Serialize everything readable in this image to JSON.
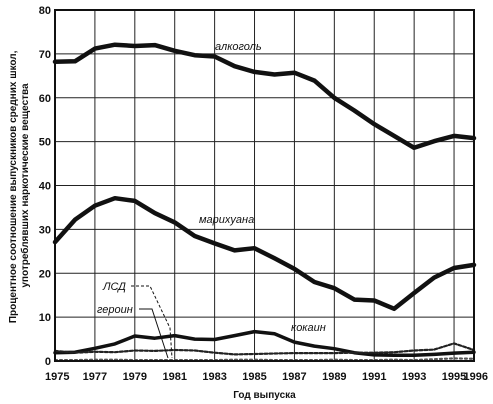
{
  "chart_data": {
    "type": "line",
    "xlabel": "Год выпуска",
    "ylabel_lines": [
      "Процентное соотношение выпускников средних школ,",
      "употреблявших наркотические вещества"
    ],
    "xlim": [
      1975,
      1996
    ],
    "ylim": [
      0,
      80
    ],
    "x_ticks": [
      1975,
      1977,
      1979,
      1981,
      1983,
      1985,
      1987,
      1989,
      1991,
      1993,
      1995,
      1996
    ],
    "x_tick_labels": [
      "1975",
      "1977",
      "1979",
      "1981",
      "1983",
      "1985",
      "1987",
      "1989",
      "1991",
      "1993",
      "1995",
      "1996"
    ],
    "y_ticks": [
      0,
      10,
      20,
      30,
      40,
      50,
      60,
      70,
      80
    ],
    "y_tick_labels": [
      "0",
      "10",
      "20",
      "30",
      "40",
      "50",
      "60",
      "70",
      "80"
    ],
    "grid": true,
    "x": [
      1975,
      1976,
      1977,
      1978,
      1979,
      1980,
      1981,
      1982,
      1983,
      1984,
      1985,
      1986,
      1987,
      1988,
      1989,
      1990,
      1991,
      1992,
      1993,
      1994,
      1995,
      1996
    ],
    "series": [
      {
        "name": "алкоголь",
        "values": [
          68.2,
          68.3,
          71.2,
          72.1,
          71.8,
          72.0,
          70.7,
          69.7,
          69.4,
          67.2,
          65.9,
          65.3,
          65.7,
          63.9,
          60.0,
          57.1,
          54.0,
          51.3,
          48.6,
          50.1,
          51.3,
          50.8
        ]
      },
      {
        "name": "марихуана",
        "values": [
          27.1,
          32.2,
          35.4,
          37.1,
          36.5,
          33.7,
          31.6,
          28.5,
          26.8,
          25.2,
          25.7,
          23.4,
          21.0,
          18.0,
          16.6,
          14.0,
          13.8,
          11.9,
          15.5,
          19.0,
          21.2,
          21.9
        ]
      },
      {
        "name": "кокаин",
        "values": [
          1.9,
          2.0,
          2.9,
          3.9,
          5.7,
          5.2,
          5.8,
          5.0,
          4.9,
          5.8,
          6.7,
          6.2,
          4.3,
          3.4,
          2.8,
          1.9,
          1.4,
          1.3,
          1.3,
          1.5,
          1.8,
          2.0
        ]
      },
      {
        "name": "ЛСД",
        "values": [
          2.3,
          1.9,
          2.1,
          2.0,
          2.4,
          2.3,
          2.5,
          2.4,
          1.9,
          1.5,
          1.6,
          1.7,
          1.8,
          1.8,
          1.8,
          1.9,
          1.9,
          2.0,
          2.4,
          2.6,
          4.0,
          2.5
        ]
      },
      {
        "name": "героин",
        "values": [
          0.2,
          0.2,
          0.3,
          0.3,
          0.2,
          0.2,
          0.2,
          0.2,
          0.2,
          0.3,
          0.3,
          0.2,
          0.2,
          0.2,
          0.3,
          0.2,
          0.2,
          0.3,
          0.2,
          0.4,
          0.6,
          0.5
        ]
      }
    ]
  }
}
